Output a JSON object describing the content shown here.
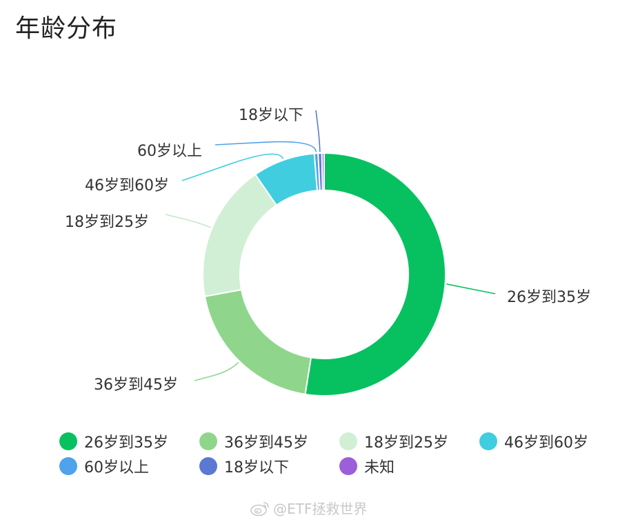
{
  "title": "年龄分布",
  "chart_data": {
    "type": "pie",
    "donut": true,
    "title": "年龄分布",
    "start_angle_deg": 0,
    "direction": "clockwise",
    "legend_position": "bottom",
    "slices": [
      {
        "label": "26岁到35岁",
        "value": 52.5,
        "color": "#07c160"
      },
      {
        "label": "36岁到45岁",
        "value": 19.6,
        "color": "#8fd68c"
      },
      {
        "label": "18岁到25岁",
        "value": 18.3,
        "color": "#d1efd5"
      },
      {
        "label": "46岁到60岁",
        "value": 8.3,
        "color": "#40cde0"
      },
      {
        "label": "60岁以上",
        "value": 0.5,
        "color": "#4fa2ec"
      },
      {
        "label": "18岁以下",
        "value": 0.5,
        "color": "#5b79d2"
      },
      {
        "label": "未知",
        "value": 0.3,
        "color": "#9b5fd9"
      }
    ]
  },
  "legend": {
    "items": [
      {
        "label": "26岁到35岁",
        "color": "#07c160"
      },
      {
        "label": "36岁到45岁",
        "color": "#8fd68c"
      },
      {
        "label": "18岁到25岁",
        "color": "#d1efd5"
      },
      {
        "label": "46岁到60岁",
        "color": "#40cde0"
      },
      {
        "label": "60岁以上",
        "color": "#4fa2ec"
      },
      {
        "label": "18岁以下",
        "color": "#5b79d2"
      },
      {
        "label": "未知",
        "color": "#9b5fd9"
      }
    ]
  },
  "watermark": {
    "text": "@ETF拯救世界",
    "icon": "weibo-icon"
  }
}
